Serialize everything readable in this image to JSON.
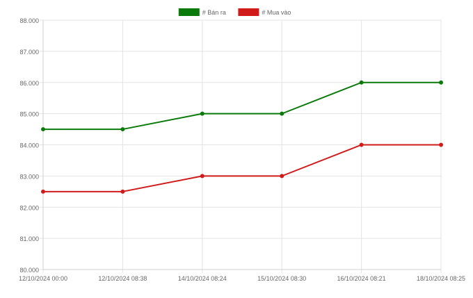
{
  "chart_data": {
    "type": "line",
    "categories": [
      "12/10/2024 00:00",
      "12/10/2024 08:38",
      "14/10/2024 08:24",
      "15/10/2024 08:30",
      "16/10/2024 08:21",
      "18/10/2024 08:25"
    ],
    "series": [
      {
        "name": "# Bán ra",
        "color": "#0a7a0a",
        "values": [
          84.5,
          84.5,
          85.0,
          85.0,
          86.0,
          86.0
        ]
      },
      {
        "name": "# Mua vào",
        "color": "#d11a1a",
        "values": [
          82.5,
          82.5,
          83.0,
          83.0,
          84.0,
          84.0
        ]
      }
    ],
    "y_ticks": [
      "80.000",
      "81.000",
      "82.000",
      "83.000",
      "84.000",
      "85.000",
      "86.000",
      "87.000",
      "88.000"
    ],
    "ylim": [
      80,
      88
    ],
    "title": "",
    "xlabel": "",
    "ylabel": "",
    "grid": true,
    "legend_position": "top-center"
  }
}
